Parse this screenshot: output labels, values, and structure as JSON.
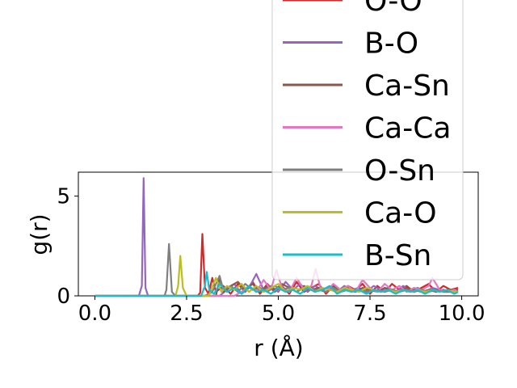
{
  "chart_data": {
    "type": "line",
    "xlabel": "r (Å)",
    "ylabel": "g(r)",
    "xlim": [
      -0.45,
      10.45
    ],
    "ylim": [
      0,
      6.2
    ],
    "xticks": [
      0.0,
      2.5,
      5.0,
      7.5,
      10.0
    ],
    "xtick_labels": [
      "0.0",
      "2.5",
      "5.0",
      "7.5",
      "10.0"
    ],
    "yticks": [
      0,
      5
    ],
    "ytick_labels": [
      "0",
      "5"
    ],
    "grid": false,
    "legend_placement": "upper-right, extending beyond axes",
    "series": [
      {
        "name": "O-O",
        "color": "#d62728",
        "points": [
          [
            0,
            0
          ],
          [
            2.7,
            0
          ],
          [
            2.8,
            0
          ],
          [
            2.87,
            0.15
          ],
          [
            2.93,
            3.1
          ],
          [
            3.0,
            0.4
          ],
          [
            3.1,
            0.1
          ],
          [
            3.2,
            0.9
          ],
          [
            3.3,
            0.2
          ],
          [
            3.5,
            0.5
          ],
          [
            3.7,
            0.1
          ],
          [
            3.9,
            0.6
          ],
          [
            4.1,
            0.2
          ],
          [
            4.3,
            0.7
          ],
          [
            4.5,
            0.1
          ],
          [
            4.7,
            0.6
          ],
          [
            4.9,
            0.2
          ],
          [
            5.1,
            0.5
          ],
          [
            5.3,
            0.1
          ],
          [
            5.5,
            0.7
          ],
          [
            5.7,
            0.2
          ],
          [
            5.9,
            0.4
          ],
          [
            6.1,
            0.6
          ],
          [
            6.3,
            0.1
          ],
          [
            6.5,
            0.5
          ],
          [
            6.7,
            0.2
          ],
          [
            6.9,
            0.5
          ],
          [
            7.1,
            0.3
          ],
          [
            7.3,
            0.6
          ],
          [
            7.5,
            0.1
          ],
          [
            7.7,
            0.5
          ],
          [
            7.9,
            0.2
          ],
          [
            8.1,
            0.6
          ],
          [
            8.3,
            0.3
          ],
          [
            8.5,
            0.5
          ],
          [
            8.7,
            0.2
          ],
          [
            8.9,
            0.4
          ],
          [
            9.1,
            0.6
          ],
          [
            9.3,
            0.2
          ],
          [
            9.5,
            0.5
          ],
          [
            9.7,
            0.3
          ],
          [
            9.9,
            0.4
          ]
        ]
      },
      {
        "name": "B-O",
        "color": "#9467bd",
        "points": [
          [
            0,
            0
          ],
          [
            1.2,
            0
          ],
          [
            1.28,
            0.5
          ],
          [
            1.33,
            5.9
          ],
          [
            1.38,
            0.4
          ],
          [
            1.45,
            0
          ],
          [
            3.4,
            0
          ],
          [
            3.6,
            0.3
          ],
          [
            3.8,
            0.6
          ],
          [
            4.0,
            0.1
          ],
          [
            4.2,
            0.4
          ],
          [
            4.4,
            1.1
          ],
          [
            4.6,
            0.3
          ],
          [
            4.8,
            0.5
          ],
          [
            5.0,
            0.2
          ],
          [
            5.2,
            0.7
          ],
          [
            5.4,
            0.3
          ],
          [
            5.6,
            0.6
          ],
          [
            5.8,
            0.2
          ],
          [
            6.0,
            0.5
          ],
          [
            6.2,
            0.3
          ],
          [
            6.4,
            0.4
          ],
          [
            6.6,
            0.2
          ],
          [
            6.8,
            0.5
          ],
          [
            7.0,
            0.3
          ],
          [
            7.2,
            0.4
          ],
          [
            7.4,
            0.2
          ],
          [
            7.6,
            0.5
          ],
          [
            7.8,
            0.3
          ],
          [
            8.0,
            0.4
          ],
          [
            8.2,
            0.2
          ],
          [
            8.4,
            0.5
          ],
          [
            8.6,
            0.3
          ],
          [
            8.8,
            0.4
          ],
          [
            9.0,
            0.2
          ],
          [
            9.2,
            0.4
          ],
          [
            9.4,
            0.3
          ],
          [
            9.6,
            0.2
          ],
          [
            9.8,
            0.3
          ],
          [
            9.9,
            0.3
          ]
        ]
      },
      {
        "name": "Ca-Sn",
        "color": "#8c564b",
        "points": [
          [
            0,
            0
          ],
          [
            3.3,
            0
          ],
          [
            3.4,
            0.9
          ],
          [
            3.5,
            0.2
          ],
          [
            3.7,
            0.5
          ],
          [
            3.9,
            0.7
          ],
          [
            4.1,
            0.3
          ],
          [
            4.3,
            0.6
          ],
          [
            4.5,
            0.2
          ],
          [
            4.7,
            0.5
          ],
          [
            4.9,
            0.3
          ],
          [
            5.1,
            0.6
          ],
          [
            5.3,
            0.4
          ],
          [
            5.5,
            0.2
          ],
          [
            5.7,
            0.5
          ],
          [
            5.9,
            0.3
          ],
          [
            6.1,
            0.4
          ],
          [
            6.3,
            0.2
          ],
          [
            6.5,
            0.5
          ],
          [
            6.7,
            0.3
          ],
          [
            6.9,
            0.4
          ],
          [
            7.1,
            0.2
          ],
          [
            7.3,
            0.4
          ],
          [
            7.5,
            0.3
          ],
          [
            7.7,
            0.2
          ],
          [
            7.9,
            0.4
          ],
          [
            8.1,
            0.3
          ],
          [
            8.3,
            0.2
          ],
          [
            8.5,
            0.4
          ],
          [
            8.7,
            0.3
          ],
          [
            8.9,
            0.2
          ],
          [
            9.1,
            0.3
          ],
          [
            9.3,
            0.2
          ],
          [
            9.5,
            0.3
          ],
          [
            9.7,
            0.2
          ],
          [
            9.9,
            0.3
          ]
        ]
      },
      {
        "name": "Ca-Ca",
        "color": "#e377c2",
        "points": [
          [
            0,
            0
          ],
          [
            3.8,
            0
          ],
          [
            4.0,
            0.2
          ],
          [
            4.2,
            0.5
          ],
          [
            4.4,
            0.2
          ],
          [
            4.6,
            0.8
          ],
          [
            4.8,
            0.3
          ],
          [
            4.95,
            1.3
          ],
          [
            5.1,
            0.4
          ],
          [
            5.3,
            0.2
          ],
          [
            5.5,
            0.9
          ],
          [
            5.7,
            0.3
          ],
          [
            5.9,
            0.5
          ],
          [
            6.02,
            1.35
          ],
          [
            6.15,
            0.4
          ],
          [
            6.3,
            0.2
          ],
          [
            6.5,
            0.6
          ],
          [
            6.7,
            0.3
          ],
          [
            6.9,
            0.5
          ],
          [
            7.1,
            0.2
          ],
          [
            7.3,
            0.8
          ],
          [
            7.5,
            0.4
          ],
          [
            7.7,
            0.2
          ],
          [
            7.9,
            0.6
          ],
          [
            8.1,
            0.3
          ],
          [
            8.3,
            0.5
          ],
          [
            8.5,
            0.2
          ],
          [
            8.7,
            0.4
          ],
          [
            8.9,
            0.3
          ],
          [
            9.1,
            0.5
          ],
          [
            9.2,
            0.9
          ],
          [
            9.4,
            0.3
          ],
          [
            9.6,
            0.2
          ],
          [
            9.8,
            0.3
          ],
          [
            9.9,
            0.2
          ]
        ]
      },
      {
        "name": "O-Sn",
        "color": "#7f7f7f",
        "points": [
          [
            0,
            0
          ],
          [
            1.9,
            0
          ],
          [
            1.95,
            0.3
          ],
          [
            2.02,
            2.6
          ],
          [
            2.1,
            0.2
          ],
          [
            2.2,
            0
          ],
          [
            3.0,
            0
          ],
          [
            3.2,
            0.2
          ],
          [
            3.4,
            1.0
          ],
          [
            3.5,
            0.3
          ],
          [
            3.7,
            0.5
          ],
          [
            3.9,
            0.2
          ],
          [
            4.1,
            0.6
          ],
          [
            4.3,
            0.3
          ],
          [
            4.5,
            0.4
          ],
          [
            4.7,
            0.2
          ],
          [
            4.9,
            0.5
          ],
          [
            5.1,
            0.3
          ],
          [
            5.3,
            0.4
          ],
          [
            5.5,
            0.2
          ],
          [
            5.7,
            0.4
          ],
          [
            5.9,
            0.3
          ],
          [
            6.1,
            0.3
          ],
          [
            6.3,
            0.2
          ],
          [
            6.5,
            0.4
          ],
          [
            6.7,
            0.2
          ],
          [
            6.9,
            0.3
          ],
          [
            7.1,
            0.2
          ],
          [
            7.3,
            0.3
          ],
          [
            7.5,
            0.2
          ],
          [
            7.7,
            0.3
          ],
          [
            7.9,
            0.2
          ],
          [
            8.1,
            0.3
          ],
          [
            8.3,
            0.2
          ],
          [
            8.5,
            0.3
          ],
          [
            8.7,
            0.2
          ],
          [
            8.9,
            0.3
          ],
          [
            9.1,
            0.2
          ],
          [
            9.3,
            0.3
          ],
          [
            9.5,
            0.2
          ],
          [
            9.7,
            0.2
          ],
          [
            9.9,
            0.2
          ]
        ]
      },
      {
        "name": "Ca-O",
        "color": "#bcbd22",
        "points": [
          [
            0,
            0
          ],
          [
            2.2,
            0
          ],
          [
            2.27,
            0.5
          ],
          [
            2.33,
            2.0
          ],
          [
            2.4,
            0.4
          ],
          [
            2.5,
            0
          ],
          [
            3.1,
            0
          ],
          [
            3.3,
            0.9
          ],
          [
            3.45,
            0.2
          ],
          [
            3.6,
            0.5
          ],
          [
            3.8,
            0.3
          ],
          [
            4.0,
            0.6
          ],
          [
            4.2,
            0.2
          ],
          [
            4.4,
            0.5
          ],
          [
            4.6,
            0.2
          ],
          [
            4.8,
            0.4
          ],
          [
            5.0,
            0.6
          ],
          [
            5.2,
            0.2
          ],
          [
            5.4,
            0.4
          ],
          [
            5.6,
            0.3
          ],
          [
            5.8,
            0.5
          ],
          [
            6.0,
            0.2
          ],
          [
            6.2,
            0.4
          ],
          [
            6.4,
            0.3
          ],
          [
            6.6,
            0.2
          ],
          [
            6.8,
            0.4
          ],
          [
            7.0,
            0.3
          ],
          [
            7.2,
            0.2
          ],
          [
            7.4,
            0.4
          ],
          [
            7.6,
            0.3
          ],
          [
            7.8,
            0.2
          ],
          [
            8.0,
            0.3
          ],
          [
            8.2,
            0.2
          ],
          [
            8.4,
            0.3
          ],
          [
            8.6,
            0.2
          ],
          [
            8.8,
            0.3
          ],
          [
            9.0,
            0.2
          ],
          [
            9.2,
            0.3
          ],
          [
            9.4,
            0.2
          ],
          [
            9.6,
            0.3
          ],
          [
            9.8,
            0.2
          ],
          [
            9.9,
            0.2
          ]
        ]
      },
      {
        "name": "B-Sn",
        "color": "#17becf",
        "points": [
          [
            0,
            0
          ],
          [
            2.9,
            0
          ],
          [
            3.0,
            0.5
          ],
          [
            3.05,
            1.2
          ],
          [
            3.12,
            0.3
          ],
          [
            3.25,
            0.1
          ],
          [
            3.4,
            0.6
          ],
          [
            3.6,
            0.2
          ],
          [
            3.8,
            0.4
          ],
          [
            4.0,
            0.1
          ],
          [
            4.2,
            0.5
          ],
          [
            4.4,
            0.2
          ],
          [
            4.6,
            0.3
          ],
          [
            4.8,
            0.1
          ],
          [
            5.0,
            0.4
          ],
          [
            5.2,
            0.2
          ],
          [
            5.4,
            0.3
          ],
          [
            5.6,
            0.1
          ],
          [
            5.8,
            0.4
          ],
          [
            6.0,
            0.2
          ],
          [
            6.2,
            0.3
          ],
          [
            6.4,
            0.5
          ],
          [
            6.6,
            0.1
          ],
          [
            6.8,
            0.3
          ],
          [
            7.0,
            0.2
          ],
          [
            7.2,
            0.3
          ],
          [
            7.4,
            0.1
          ],
          [
            7.6,
            0.3
          ],
          [
            7.8,
            0.2
          ],
          [
            8.0,
            0.3
          ],
          [
            8.2,
            0.1
          ],
          [
            8.4,
            0.3
          ],
          [
            8.6,
            0.2
          ],
          [
            8.8,
            0.3
          ],
          [
            9.0,
            0.1
          ],
          [
            9.2,
            0.3
          ],
          [
            9.4,
            0.2
          ],
          [
            9.6,
            0.3
          ],
          [
            9.8,
            0.1
          ],
          [
            9.9,
            0.2
          ]
        ]
      }
    ]
  }
}
